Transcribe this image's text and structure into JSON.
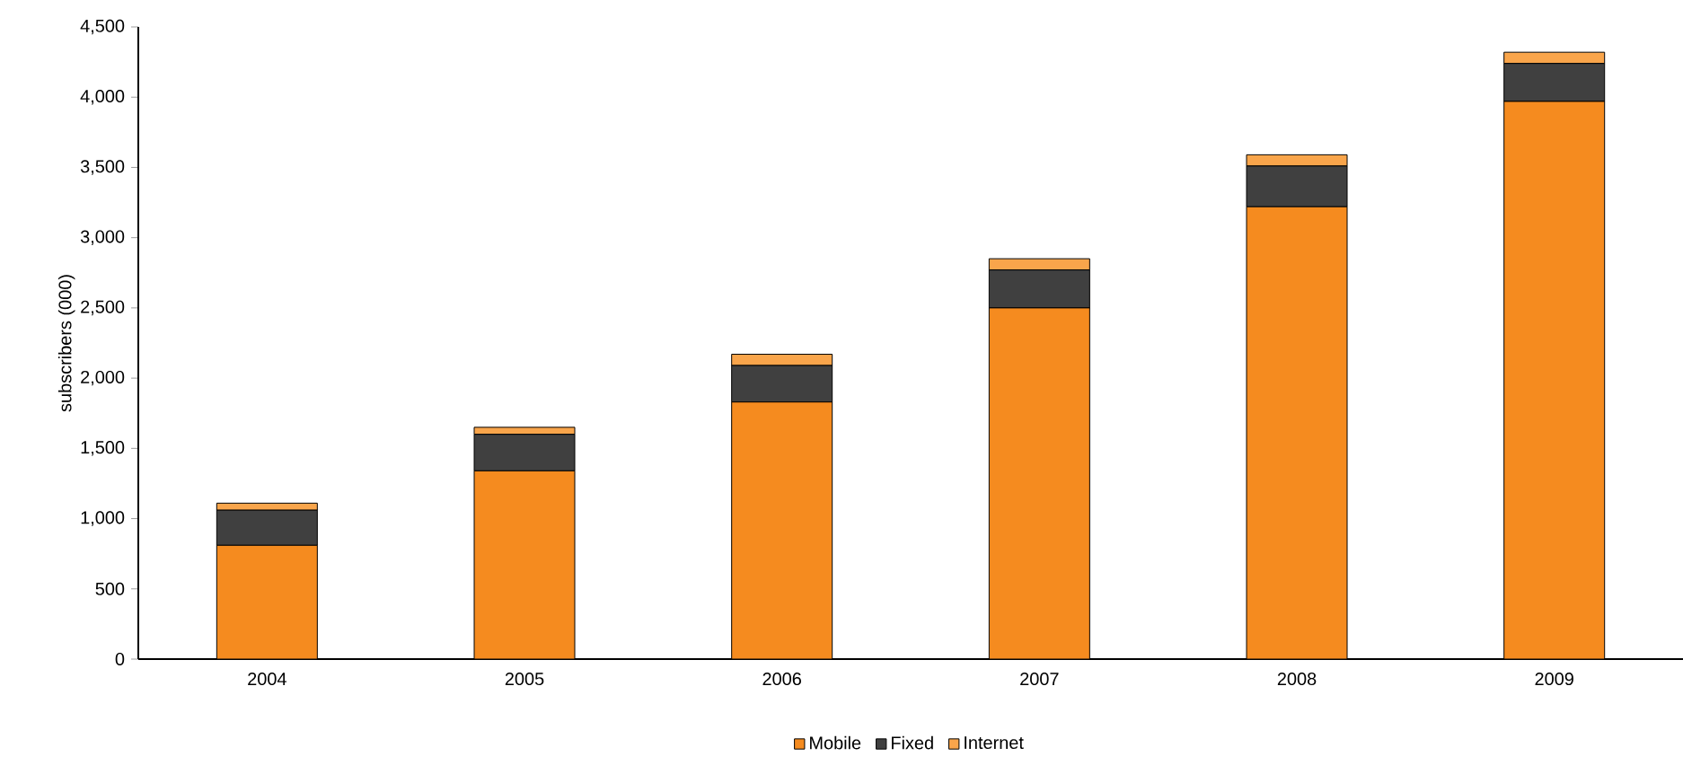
{
  "chart_data": {
    "type": "bar",
    "stacked": true,
    "ylabel": "subscribers (000)",
    "categories": [
      "2004",
      "2005",
      "2006",
      "2007",
      "2008",
      "2009"
    ],
    "series": [
      {
        "name": "Mobile",
        "color": "#f58b1f",
        "values": [
          810,
          1340,
          1830,
          2500,
          3220,
          3970
        ]
      },
      {
        "name": "Fixed",
        "color": "#404040",
        "values": [
          250,
          260,
          260,
          270,
          290,
          270
        ]
      },
      {
        "name": "Internet",
        "color": "#f9a54b",
        "values": [
          50,
          50,
          80,
          80,
          80,
          80
        ]
      }
    ],
    "ylim": [
      0,
      4500
    ],
    "yticks": [
      {
        "value": 0,
        "label": "0"
      },
      {
        "value": 500,
        "label": "500"
      },
      {
        "value": 1000,
        "label": "1,000"
      },
      {
        "value": 1500,
        "label": "1,500"
      },
      {
        "value": 2000,
        "label": "2,000"
      },
      {
        "value": 2500,
        "label": "2,500"
      },
      {
        "value": 3000,
        "label": "3,000"
      },
      {
        "value": 3500,
        "label": "3,500"
      },
      {
        "value": 4000,
        "label": "4,000"
      },
      {
        "value": 4500,
        "label": "4,500"
      }
    ],
    "grid": false,
    "legend": "bottom"
  }
}
